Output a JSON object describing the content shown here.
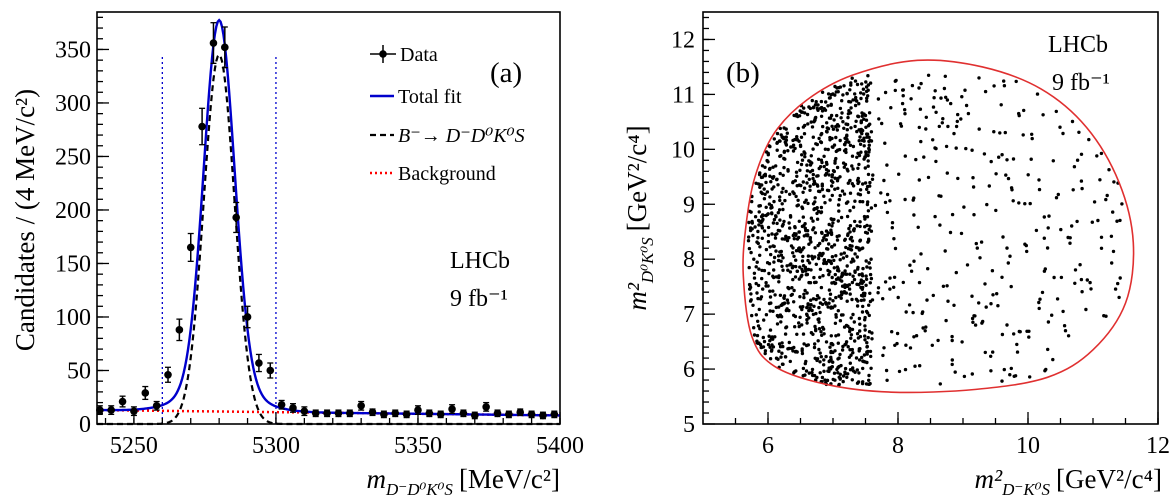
{
  "chart_data": [
    {
      "type": "scatter",
      "panel_label": "(a)",
      "xlabel_main": "m",
      "xlabel_sub": "D⁻D⁰K⁰S",
      "xlabel_unit": "[MeV/c²]",
      "ylabel": "Candidates / (4 MeV/c²)",
      "xlim": [
        5237,
        5400
      ],
      "ylim": [
        0,
        385
      ],
      "xticks": [
        5250,
        5300,
        5350,
        5400
      ],
      "yticks": [
        0,
        50,
        100,
        150,
        200,
        250,
        300,
        350
      ],
      "experiment": "LHCb",
      "luminosity": "9 fb⁻¹",
      "signal_window_lines": [
        5260,
        5300
      ],
      "legend": {
        "position": "top-right",
        "entries": [
          {
            "label": "Data",
            "style": "points",
            "color": "#000000"
          },
          {
            "label": "Total fit",
            "style": "solid",
            "color": "#0000cc"
          },
          {
            "label": "B⁻→ D⁻D⁰K⁰S",
            "style": "dashed",
            "color": "#000000"
          },
          {
            "label": "Background",
            "style": "dotted",
            "color": "#ff0000"
          }
        ]
      },
      "data_points": {
        "x": [
          5238,
          5242,
          5246,
          5250,
          5254,
          5258,
          5262,
          5266,
          5270,
          5274,
          5278,
          5282,
          5286,
          5290,
          5294,
          5298,
          5302,
          5306,
          5310,
          5314,
          5318,
          5322,
          5326,
          5330,
          5334,
          5338,
          5342,
          5346,
          5350,
          5354,
          5358,
          5362,
          5366,
          5370,
          5374,
          5378,
          5382,
          5386,
          5390,
          5394,
          5398
        ],
        "y": [
          13,
          13,
          21,
          12,
          29,
          17,
          46,
          88,
          165,
          278,
          356,
          352,
          193,
          100,
          57,
          50,
          18,
          15,
          12,
          10,
          10,
          10,
          10,
          17,
          11,
          9,
          10,
          9,
          13,
          10,
          9,
          14,
          10,
          8,
          16,
          10,
          9,
          11,
          9,
          8,
          9
        ],
        "yerr": [
          4,
          4,
          5,
          4,
          6,
          4,
          7,
          10,
          13,
          17,
          19,
          19,
          14,
          10,
          8,
          7,
          4,
          4,
          4,
          3,
          3,
          3,
          3,
          4,
          3,
          3,
          3,
          3,
          4,
          3,
          3,
          4,
          3,
          3,
          4,
          3,
          3,
          3,
          3,
          3,
          3
        ]
      },
      "total_fit": {
        "mean": 5280,
        "sigma": 5.4,
        "peak": 345,
        "bkg_start": 13,
        "bkg_end": 8,
        "color": "#0000cc"
      },
      "signal_component": {
        "mean": 5280,
        "sigma": 5.4,
        "peak": 345,
        "color": "#000000"
      },
      "background": {
        "start": 13,
        "end": 8,
        "color": "#ff0000"
      }
    },
    {
      "type": "scatter",
      "panel_label": "(b)",
      "xlabel_main": "m²",
      "xlabel_sub": "D⁻K⁰S",
      "xlabel_unit": "[GeV²/c⁴]",
      "ylabel_main": "m²",
      "ylabel_sub": "D⁰K⁰S",
      "ylabel_unit": "[GeV²/c⁴]",
      "xlim": [
        5.0,
        12.0
      ],
      "ylim": [
        5.0,
        12.5
      ],
      "xticks": [
        6,
        8,
        10,
        12
      ],
      "yticks": [
        5,
        6,
        7,
        8,
        9,
        10,
        11,
        12
      ],
      "experiment": "LHCb",
      "luminosity": "9 fb⁻¹",
      "boundary": {
        "color": "#e03030",
        "points": [
          [
            5.62,
            7.7
          ],
          [
            5.66,
            8.6
          ],
          [
            5.8,
            9.5
          ],
          [
            6.1,
            10.3
          ],
          [
            6.6,
            10.9
          ],
          [
            7.3,
            11.35
          ],
          [
            8.3,
            11.62
          ],
          [
            9.3,
            11.5
          ],
          [
            10.2,
            11.1
          ],
          [
            10.9,
            10.4
          ],
          [
            11.4,
            9.4
          ],
          [
            11.62,
            8.3
          ],
          [
            11.5,
            7.2
          ],
          [
            11.0,
            6.35
          ],
          [
            10.3,
            5.85
          ],
          [
            9.2,
            5.63
          ],
          [
            7.9,
            5.58
          ],
          [
            6.9,
            5.72
          ],
          [
            6.1,
            6.05
          ],
          [
            5.75,
            6.6
          ]
        ]
      },
      "point_density_regions": [
        {
          "description_free": true,
          "xrange": [
            5.7,
            7.6
          ],
          "yrange": [
            5.7,
            11.4
          ],
          "count": 1250
        },
        {
          "description_free": true,
          "xrange": [
            7.6,
            11.5
          ],
          "yrange": [
            5.7,
            11.4
          ],
          "count": 330
        }
      ],
      "point_color": "#000000"
    }
  ]
}
